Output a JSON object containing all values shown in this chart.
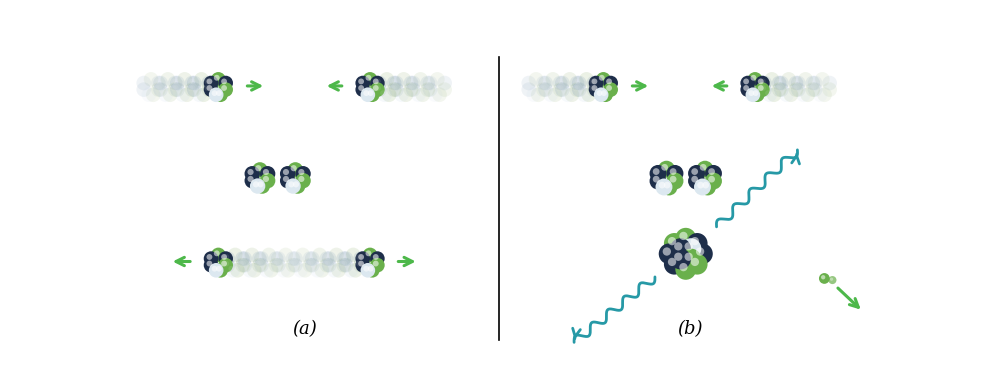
{
  "background_color": "#ffffff",
  "arrow_color": "#4db84a",
  "wave_color": "#2699a6",
  "dark_color": "#1e2e4a",
  "green_color": "#6ab04c",
  "white_color": "#dce8f0",
  "label_a": "(a)",
  "label_b": "(b)",
  "label_fontsize": 13
}
